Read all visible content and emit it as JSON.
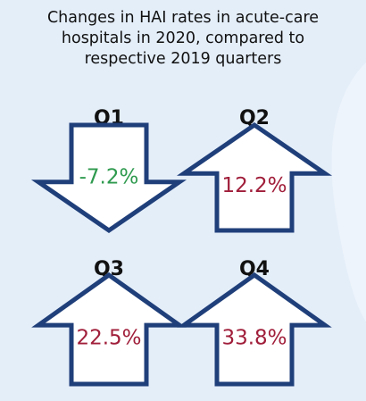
{
  "title_lines": [
    "Changes in HAI rates in acute-care",
    "hospitals in 2020, compared to",
    "respective 2019 quarters"
  ],
  "colors": {
    "background": "#e4eef9",
    "arrow_fill": "#ffffff",
    "arrow_outline": "#1f3f7a",
    "decrease_text": "#2e9a4e",
    "increase_text": "#a01e3a",
    "quarter_label": "#111111"
  },
  "chart_data": {
    "type": "table",
    "title": "Changes in HAI rates in acute-care hospitals in 2020, compared to respective 2019 quarters",
    "categories": [
      "Q1",
      "Q2",
      "Q3",
      "Q4"
    ],
    "values": [
      -7.2,
      12.2,
      22.5,
      33.8
    ],
    "value_labels": [
      "-7.2%",
      "12.2%",
      "22.5%",
      "33.8%"
    ],
    "unit": "%",
    "directions": [
      "down",
      "up",
      "up",
      "up"
    ]
  }
}
